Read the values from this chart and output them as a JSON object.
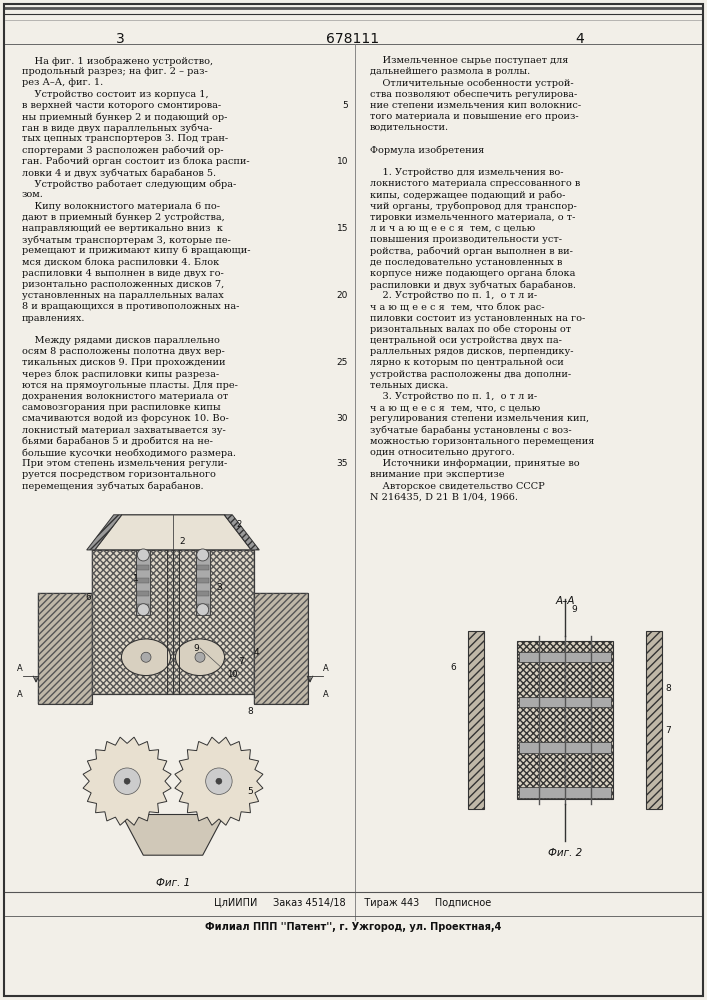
{
  "page_bg": "#f2efe8",
  "text_color": "#111111",
  "title_patent": "678111",
  "col_left_num": "3",
  "col_right_num": "4",
  "left_text_lines": [
    "    На фиг. 1 изображено устройство,",
    "продольный разрез; на фиг. 2 – раз-",
    "рез А–А, фиг. 1.",
    "    Устройство состоит из корпуса 1,",
    "в верхней части которого смонтирова-",
    "ны приемный бункер 2 и подающий ор-",
    "ган в виде двух параллельных зубча-",
    "тых цепных транспортеров 3. Под тран-",
    "спортерами 3 расположен рабочий ор-",
    "ган. Рабочий орган состоит из блока распи-",
    "ловки 4 и двух зубчатых барабанов 5.",
    "    Устройство работает следующим обра-",
    "зом.",
    "    Кипу волокнистого материала 6 по-",
    "дают в приемный бункер 2 устройства,",
    "направляющий ее вертикально вниз  к",
    "зубчатым транспортерам 3, которые пе-",
    "ремещают и прижимают кипу 6 вращающи-",
    "мся диском блока распиловки 4. Блок",
    "распиловки 4 выполнен в виде двух го-",
    "ризонтально расположенных дисков 7,",
    "установленных на параллельных валах",
    "8 и вращающихся в противоположных на-",
    "правлениях.",
    "",
    "    Между рядами дисков параллельно",
    "осям 8 расположены полотна двух вер-",
    "тикальных дисков 9. При прохождении",
    "через блок распиловки кипы разреза-",
    "ются на прямоугольные пласты. Для пре-",
    "дохранения волокнистого материала от",
    "самовозгорания при распиловке кипы",
    "смачиваются водой из форсунок 10. Во-",
    "локнистый материал захватывается зу-",
    "бьями барабанов 5 и дробится на не-",
    "большие кусочки необходимого размера.",
    "При этом степень измельчения регули-",
    "руется посредством горизонтального",
    "перемещения зубчатых барабанов."
  ],
  "right_text_lines": [
    "    Измельченное сырье поступает для",
    "дальнейшего размола в роллы.",
    "    Отличительные особенности устрой-",
    "ства позволяют обеспечить регулирова-",
    "ние степени измельчения кип волокнис-",
    "того материала и повышение его произ-",
    "водительности.",
    "",
    "Формула изобретения",
    "",
    "    1. Устройство для измельчения во-",
    "локнистого материала спрессованного в",
    "кипы, содержащее подающий и рабо-",
    "чий органы, трубопровод для транспор-",
    "тировки измельченного материала, о т-",
    "л и ч а ю щ е е с я  тем, с целью",
    "повышения производительности уст-",
    "ройства, рабочий орган выполнен в ви-",
    "де последовательно установленных в",
    "корпусе ниже подающего органа блока",
    "распиловки и двух зубчатых барабанов.",
    "    2. Устройство по п. 1,  о т л и-",
    "ч а ю щ е е с я  тем, что блок рас-",
    "пиловки состоит из установленных на го-",
    "ризонтальных валах по обе стороны от",
    "центральной оси устройства двух па-",
    "раллельных рядов дисков, перпендику-",
    "лярно к которым по центральной оси",
    "устройства расположены два дополни-",
    "тельных диска.",
    "    3. Устройство по п. 1,  о т л и-",
    "ч а ю щ е е с я  тем, что, с целью",
    "регулирования степени измельчения кип,",
    "зубчатые барабаны установлены с воз-",
    "можностью горизонтального перемещения",
    "один относительно другого.",
    "    Источники информации, принятые во",
    "внимание при экспертизе",
    "    Авторское свидетельство СССР",
    "N 216435, D 21 В 1/04, 1966."
  ],
  "line_numbers": [
    5,
    10,
    15,
    20,
    25,
    30,
    35
  ],
  "line_number_rows": [
    4,
    9,
    15,
    21,
    27,
    32,
    36
  ],
  "bottom_bar_text": "ЦлИИПИ     Заказ 4514/18      Тираж 443     Подписное",
  "bottom_address": "Филиал ППП ''Патент'', г. Ужгород, ул. Проектная,4",
  "fig1_caption": "Фиг. 1",
  "fig2_caption": "Фиг. 2"
}
